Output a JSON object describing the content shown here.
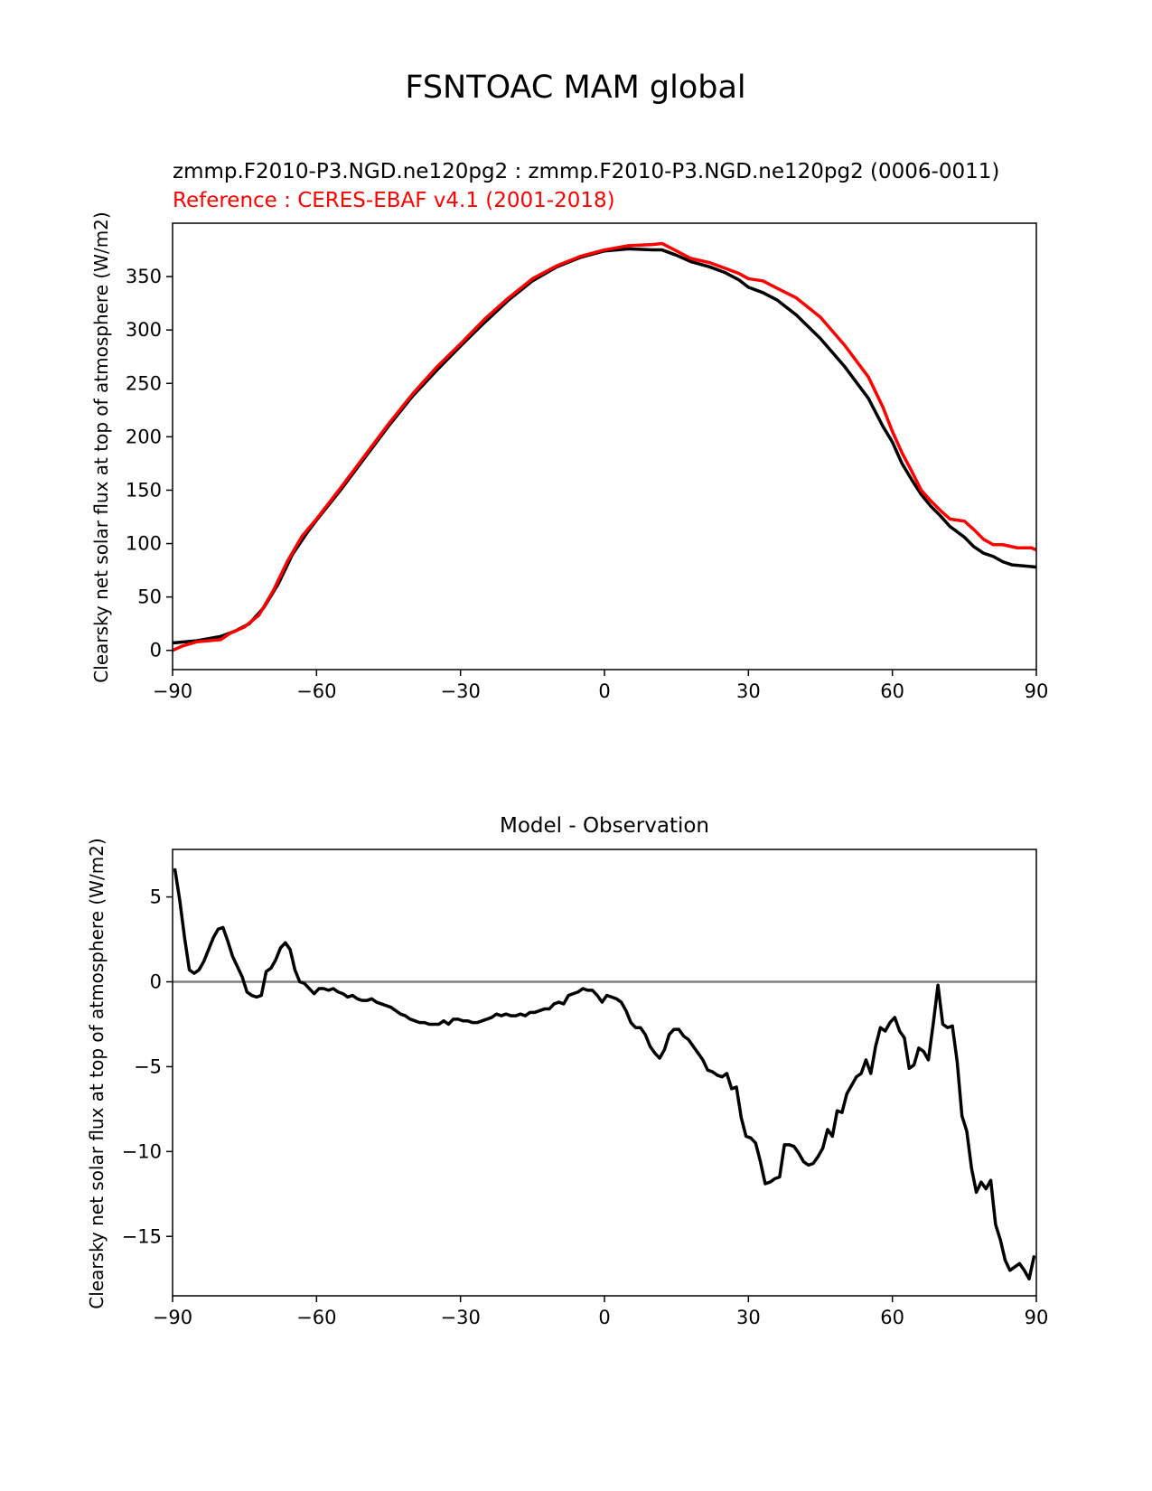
{
  "figure": {
    "suptitle": "FSNTOAC MAM global"
  },
  "chart_data": [
    {
      "type": "line",
      "title_test": "zmmp.F2010-P3.NGD.ne120pg2 : zmmp.F2010-P3.NGD.ne120pg2 (0006-0011)",
      "title_ref": "Reference : CERES-EBAF v4.1 (2001-2018)",
      "xlabel": "",
      "ylabel": "Clearsky net solar flux at top of atmosphere (W/m2)",
      "xlim": [
        -90,
        90
      ],
      "ylim": [
        -18,
        400
      ],
      "xticks": [
        -90,
        -60,
        -30,
        0,
        30,
        60,
        90
      ],
      "xtick_labels": [
        "−90",
        "−60",
        "−30",
        "0",
        "30",
        "60",
        "90"
      ],
      "yticks": [
        0,
        50,
        100,
        150,
        200,
        250,
        300,
        350
      ],
      "ytick_labels": [
        "0",
        "50",
        "100",
        "150",
        "200",
        "250",
        "300",
        "350"
      ],
      "grid": false,
      "series": [
        {
          "color": "#000000",
          "x": [
            -90,
            -85,
            -80,
            -77,
            -74,
            -71,
            -68,
            -65,
            -62,
            -60,
            -55,
            -50,
            -45,
            -40,
            -35,
            -30,
            -25,
            -20,
            -15,
            -10,
            -5,
            0,
            5,
            10,
            12,
            15,
            18,
            22,
            25,
            28,
            30,
            33,
            36,
            40,
            45,
            50,
            55,
            58,
            60,
            62,
            64,
            66,
            68,
            70,
            72,
            75,
            77,
            79,
            81,
            83,
            85,
            90
          ],
          "y": [
            7,
            9,
            13,
            18,
            25,
            40,
            62,
            90,
            110,
            122,
            150,
            180,
            210,
            238,
            262,
            285,
            307,
            328,
            346,
            359,
            368,
            374,
            376,
            375,
            375,
            370,
            364,
            359,
            354,
            347,
            340,
            335,
            328,
            314,
            292,
            266,
            236,
            210,
            195,
            175,
            160,
            146,
            135,
            126,
            116,
            106,
            97,
            91,
            88,
            83,
            80,
            78
          ]
        },
        {
          "color": "#ff0000",
          "x": [
            -90,
            -88,
            -85,
            -80,
            -78,
            -75,
            -72,
            -69,
            -66,
            -63,
            -60,
            -55,
            -50,
            -45,
            -40,
            -35,
            -30,
            -25,
            -20,
            -15,
            -10,
            -5,
            0,
            5,
            10,
            12,
            15,
            18,
            22,
            25,
            28,
            30,
            33,
            36,
            40,
            45,
            50,
            55,
            58,
            60,
            62,
            64,
            66,
            68,
            70,
            72,
            75,
            77,
            79,
            81,
            83,
            86,
            89,
            90
          ],
          "y": [
            0,
            4,
            8,
            10,
            16,
            22,
            33,
            56,
            84,
            107,
            123,
            152,
            182,
            212,
            240,
            265,
            287,
            310,
            330,
            348,
            360,
            369,
            375,
            379,
            380,
            381,
            374,
            367,
            363,
            358,
            353,
            348,
            346,
            339,
            330,
            312,
            286,
            256,
            228,
            205,
            185,
            168,
            150,
            140,
            131,
            123,
            121,
            113,
            104,
            99,
            99,
            96,
            96,
            94
          ]
        }
      ]
    },
    {
      "type": "line",
      "title": "Model - Observation",
      "xlabel": "",
      "ylabel": "Clearsky net solar flux at top of atmosphere (W/m2)",
      "xlim": [
        -90,
        90
      ],
      "ylim": [
        -18.5,
        7.8
      ],
      "xticks": [
        -90,
        -60,
        -30,
        0,
        30,
        60,
        90
      ],
      "xtick_labels": [
        "−90",
        "−60",
        "−30",
        "0",
        "30",
        "60",
        "90"
      ],
      "yticks": [
        -15,
        -10,
        -5,
        0,
        5
      ],
      "ytick_labels": [
        "−15",
        "−10",
        "−5",
        "0",
        "5"
      ],
      "grid": false,
      "reference_line": {
        "y": 0,
        "color": "#808080"
      },
      "series": [
        {
          "color": "#000000",
          "x": [
            -89.5,
            -88.5,
            -87.5,
            -86.5,
            -85.5,
            -84.5,
            -83.5,
            -82.5,
            -81.5,
            -80.5,
            -79.5,
            -78.5,
            -77.5,
            -76.5,
            -75.5,
            -74.5,
            -73.5,
            -72.5,
            -71.5,
            -70.5,
            -69.5,
            -68.5,
            -67.5,
            -66.5,
            -65.5,
            -64.5,
            -63.5,
            -62.5,
            -61.5,
            -60.5,
            -59.5,
            -58.5,
            -57.5,
            -56.5,
            -55.5,
            -54.5,
            -53.5,
            -52.5,
            -51.5,
            -50.5,
            -49.5,
            -48.5,
            -47.5,
            -46.5,
            -45.5,
            -44.5,
            -43.5,
            -42.5,
            -41.5,
            -40.5,
            -39.5,
            -38.5,
            -37.5,
            -36.5,
            -35.5,
            -34.5,
            -33.5,
            -32.5,
            -31.5,
            -30.5,
            -29.5,
            -28.5,
            -27.5,
            -26.5,
            -25.5,
            -24.5,
            -23.5,
            -22.5,
            -21.5,
            -20.5,
            -19.5,
            -18.5,
            -17.5,
            -16.5,
            -15.5,
            -14.5,
            -13.5,
            -12.5,
            -11.5,
            -10.5,
            -9.5,
            -8.5,
            -7.5,
            -6.5,
            -5.5,
            -4.5,
            -3.5,
            -2.5,
            -1.5,
            -0.5,
            0.5,
            1.5,
            2.5,
            3.5,
            4.5,
            5.5,
            6.5,
            7.5,
            8.5,
            9.5,
            10.5,
            11.5,
            12.5,
            13.5,
            14.5,
            15.5,
            16.5,
            17.5,
            18.5,
            19.5,
            20.5,
            21.5,
            22.5,
            23.5,
            24.5,
            25.5,
            26.5,
            27.5,
            28.5,
            29.5,
            30.5,
            31.5,
            32.5,
            33.5,
            34.5,
            35.5,
            36.5,
            37.5,
            38.5,
            39.5,
            40.5,
            41.5,
            42.5,
            43.5,
            44.5,
            45.5,
            46.5,
            47.5,
            48.5,
            49.5,
            50.5,
            51.5,
            52.5,
            53.5,
            54.5,
            55.5,
            56.5,
            57.5,
            58.5,
            59.5,
            60.5,
            61.5,
            62.5,
            63.5,
            64.5,
            65.5,
            66.5,
            67.5,
            68.5,
            69.5,
            70.5,
            71.5,
            72.5,
            73.5,
            74.5,
            75.5,
            76.5,
            77.5,
            78.5,
            79.5,
            80.5,
            81.5,
            82.5,
            83.5,
            84.5,
            85.5,
            86.5,
            87.5,
            88.5,
            89.5
          ],
          "y": [
            6.6,
            4.8,
            2.6,
            0.7,
            0.5,
            0.7,
            1.2,
            1.9,
            2.6,
            3.1,
            3.2,
            2.4,
            1.5,
            0.9,
            0.3,
            -0.6,
            -0.8,
            -0.9,
            -0.8,
            0.6,
            0.8,
            1.3,
            2.0,
            2.3,
            1.9,
            0.7,
            0.0,
            -0.1,
            -0.4,
            -0.7,
            -0.4,
            -0.4,
            -0.5,
            -0.4,
            -0.6,
            -0.7,
            -0.9,
            -0.8,
            -1.0,
            -1.1,
            -1.1,
            -1.0,
            -1.2,
            -1.3,
            -1.4,
            -1.5,
            -1.7,
            -1.9,
            -2.0,
            -2.2,
            -2.3,
            -2.4,
            -2.4,
            -2.5,
            -2.5,
            -2.5,
            -2.3,
            -2.5,
            -2.2,
            -2.2,
            -2.3,
            -2.3,
            -2.4,
            -2.4,
            -2.3,
            -2.2,
            -2.1,
            -1.9,
            -2.0,
            -1.9,
            -2.0,
            -2.0,
            -1.9,
            -2.0,
            -1.8,
            -1.8,
            -1.7,
            -1.6,
            -1.6,
            -1.3,
            -1.2,
            -1.3,
            -0.8,
            -0.7,
            -0.6,
            -0.4,
            -0.5,
            -0.5,
            -0.8,
            -1.2,
            -0.8,
            -0.9,
            -1.0,
            -1.2,
            -1.7,
            -2.4,
            -2.7,
            -2.7,
            -3.1,
            -3.8,
            -4.2,
            -4.5,
            -4.0,
            -3.1,
            -2.8,
            -2.8,
            -3.2,
            -3.4,
            -3.8,
            -4.2,
            -4.6,
            -5.2,
            -5.3,
            -5.5,
            -5.6,
            -5.4,
            -6.3,
            -6.2,
            -8.0,
            -9.1,
            -9.2,
            -9.5,
            -10.6,
            -11.9,
            -11.8,
            -11.6,
            -11.5,
            -9.6,
            -9.6,
            -9.7,
            -10.1,
            -10.6,
            -10.8,
            -10.7,
            -10.3,
            -9.8,
            -8.7,
            -9.1,
            -7.6,
            -7.7,
            -6.6,
            -6.1,
            -5.6,
            -5.4,
            -4.6,
            -5.4,
            -3.8,
            -2.7,
            -2.9,
            -2.4,
            -2.1,
            -2.9,
            -3.3,
            -5.1,
            -4.9,
            -3.9,
            -4.1,
            -4.6,
            -2.5,
            -0.2,
            -2.5,
            -2.7,
            -2.6,
            -4.7,
            -7.9,
            -8.8,
            -11.0,
            -12.4,
            -11.8,
            -12.2,
            -11.7,
            -14.3,
            -15.2,
            -16.4,
            -17.0,
            -16.8,
            -16.6,
            -17.0,
            -17.5,
            -16.2
          ]
        }
      ]
    }
  ]
}
